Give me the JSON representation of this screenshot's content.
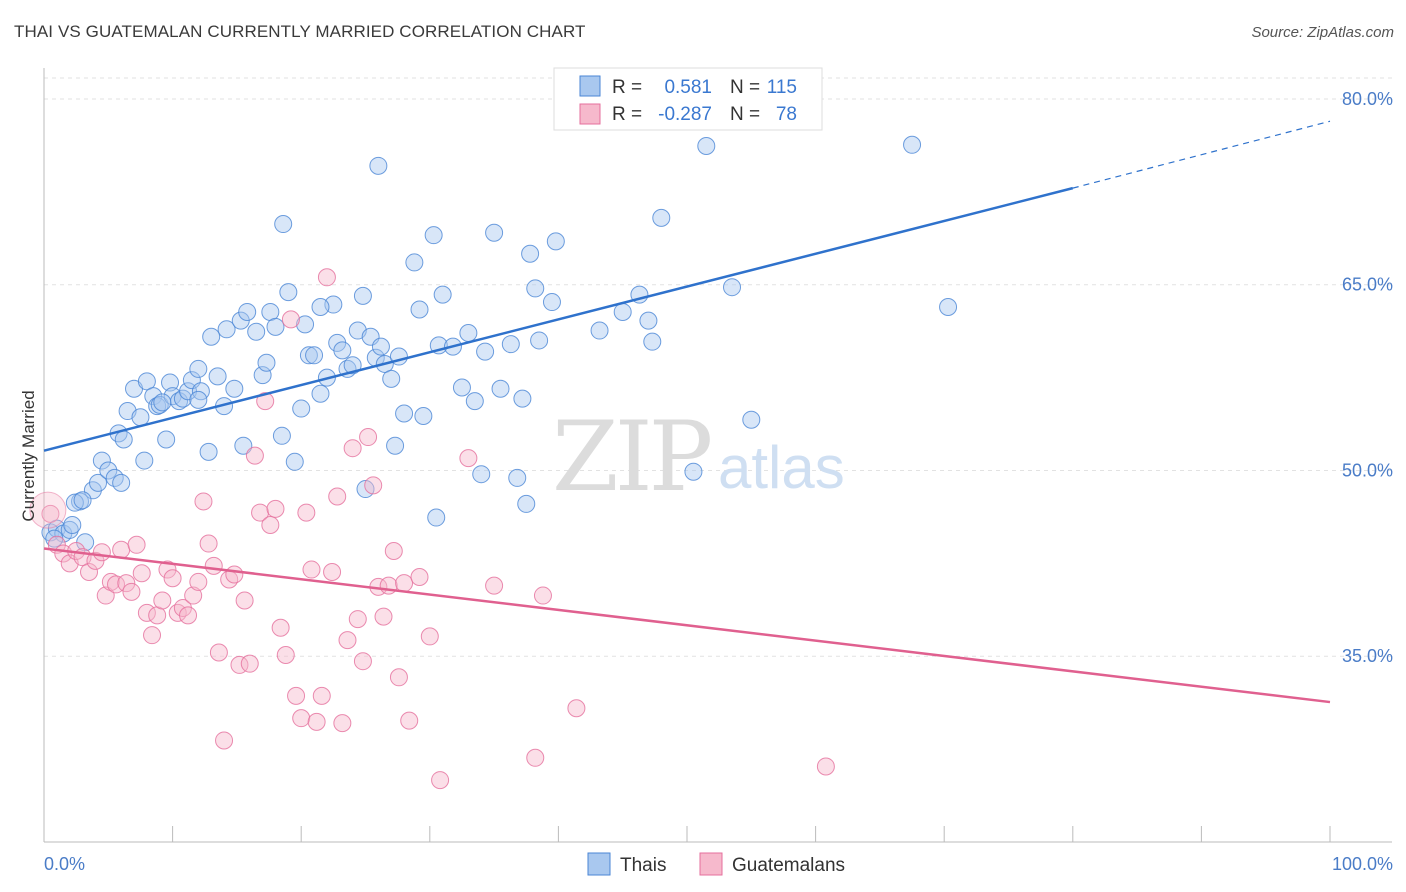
{
  "header": {
    "title": "THAI VS GUATEMALAN CURRENTLY MARRIED CORRELATION CHART",
    "source": "Source: ZipAtlas.com"
  },
  "watermark": {
    "zip": "ZIP",
    "atlas": "atlas"
  },
  "legend_top": {
    "rows": [
      {
        "r_label": "R =",
        "r_value": "0.581",
        "n_label": "N =",
        "n_value": "115",
        "color": "#a9c8ef"
      },
      {
        "r_label": "R =",
        "r_value": "-0.287",
        "n_label": "N =",
        "n_value": "78",
        "color": "#f6b9cc"
      }
    ]
  },
  "legend_bottom": {
    "items": [
      {
        "label": "Thais",
        "color": "#a9c8ef"
      },
      {
        "label": "Guatemalans",
        "color": "#f6b9cc"
      }
    ]
  },
  "chart_data": {
    "type": "scatter",
    "title": "THAI VS GUATEMALAN CURRENTLY MARRIED CORRELATION CHART",
    "xlabel": "",
    "ylabel": "Currently Married",
    "xlim": [
      0,
      100
    ],
    "ylim": [
      20,
      82.5
    ],
    "x_tick_labels": [
      "0.0%",
      "100.0%"
    ],
    "y_ticks": [
      35,
      50,
      65,
      80
    ],
    "y_tick_labels": [
      "35.0%",
      "50.0%",
      "65.0%",
      "80.0%"
    ],
    "grid": true,
    "legend_position": "top-center",
    "series": [
      {
        "name": "Thais",
        "color": "#4a86d6",
        "fill": "#a9c8ef",
        "r": 0.581,
        "n": 115,
        "trend": {
          "x0": 0,
          "y0": 51.6,
          "x1": 80,
          "y1": 72.8,
          "dashed_to_x": 100,
          "dashed_to_y": 78.2
        },
        "points": [
          [
            0.5,
            45.0
          ],
          [
            1.0,
            45.3
          ],
          [
            1.5,
            44.9
          ],
          [
            2.0,
            45.2
          ],
          [
            0.8,
            44.5
          ],
          [
            3.2,
            44.2
          ],
          [
            2.2,
            45.6
          ],
          [
            2.8,
            47.5
          ],
          [
            2.4,
            47.4
          ],
          [
            3.8,
            48.4
          ],
          [
            4.2,
            49.0
          ],
          [
            4.5,
            50.8
          ],
          [
            5.0,
            50.0
          ],
          [
            5.5,
            49.4
          ],
          [
            5.8,
            53.0
          ],
          [
            6.0,
            49.0
          ],
          [
            6.2,
            52.5
          ],
          [
            6.5,
            54.8
          ],
          [
            7.0,
            56.6
          ],
          [
            7.5,
            54.3
          ],
          [
            7.8,
            50.8
          ],
          [
            8.0,
            57.2
          ],
          [
            8.5,
            56.0
          ],
          [
            8.8,
            55.2
          ],
          [
            9.0,
            55.3
          ],
          [
            9.5,
            52.5
          ],
          [
            9.8,
            57.1
          ],
          [
            10.0,
            56.0
          ],
          [
            10.5,
            55.6
          ],
          [
            10.8,
            55.8
          ],
          [
            11.2,
            56.4
          ],
          [
            11.5,
            57.3
          ],
          [
            12.0,
            58.2
          ],
          [
            12.2,
            56.4
          ],
          [
            12.8,
            51.5
          ],
          [
            13.0,
            60.8
          ],
          [
            13.5,
            57.6
          ],
          [
            14.0,
            55.2
          ],
          [
            14.2,
            61.4
          ],
          [
            14.8,
            56.6
          ],
          [
            15.3,
            62.1
          ],
          [
            15.5,
            52.0
          ],
          [
            15.8,
            62.8
          ],
          [
            16.5,
            61.2
          ],
          [
            17.0,
            57.7
          ],
          [
            17.3,
            58.7
          ],
          [
            17.6,
            62.8
          ],
          [
            18.0,
            61.6
          ],
          [
            18.5,
            52.8
          ],
          [
            19.0,
            64.4
          ],
          [
            19.5,
            50.7
          ],
          [
            20.0,
            55.0
          ],
          [
            20.3,
            61.8
          ],
          [
            20.6,
            59.3
          ],
          [
            21.0,
            59.3
          ],
          [
            21.5,
            56.2
          ],
          [
            22.0,
            57.5
          ],
          [
            22.5,
            63.4
          ],
          [
            22.8,
            60.3
          ],
          [
            23.2,
            59.7
          ],
          [
            23.6,
            58.2
          ],
          [
            24.0,
            58.5
          ],
          [
            24.4,
            61.3
          ],
          [
            24.8,
            64.1
          ],
          [
            25.0,
            48.5
          ],
          [
            25.4,
            60.8
          ],
          [
            25.8,
            59.1
          ],
          [
            26.2,
            60.0
          ],
          [
            26.5,
            58.6
          ],
          [
            26.0,
            74.6
          ],
          [
            18.6,
            69.9
          ],
          [
            27.0,
            57.4
          ],
          [
            27.3,
            52.0
          ],
          [
            27.6,
            59.2
          ],
          [
            28.0,
            54.6
          ],
          [
            28.8,
            66.8
          ],
          [
            29.2,
            63.0
          ],
          [
            29.5,
            54.4
          ],
          [
            30.3,
            69.0
          ],
          [
            30.7,
            60.1
          ],
          [
            31.0,
            64.2
          ],
          [
            31.8,
            60.0
          ],
          [
            32.5,
            56.7
          ],
          [
            33.0,
            61.1
          ],
          [
            33.5,
            55.6
          ],
          [
            34.0,
            49.7
          ],
          [
            34.3,
            59.6
          ],
          [
            35.0,
            69.2
          ],
          [
            35.5,
            56.6
          ],
          [
            36.3,
            60.2
          ],
          [
            37.2,
            55.8
          ],
          [
            36.8,
            49.4
          ],
          [
            37.5,
            47.3
          ],
          [
            37.8,
            67.5
          ],
          [
            38.2,
            64.7
          ],
          [
            38.5,
            60.5
          ],
          [
            39.5,
            63.6
          ],
          [
            39.8,
            68.5
          ],
          [
            43.2,
            61.3
          ],
          [
            45.0,
            62.8
          ],
          [
            46.3,
            64.2
          ],
          [
            47.0,
            62.1
          ],
          [
            47.3,
            60.4
          ],
          [
            48.0,
            70.4
          ],
          [
            50.5,
            49.9
          ],
          [
            51.5,
            76.2
          ],
          [
            53.5,
            64.8
          ],
          [
            55.0,
            54.1
          ],
          [
            67.5,
            76.3
          ],
          [
            70.3,
            63.2
          ],
          [
            30.5,
            46.2
          ],
          [
            21.5,
            63.2
          ],
          [
            12.0,
            55.7
          ],
          [
            9.2,
            55.5
          ],
          [
            3.0,
            47.6
          ]
        ]
      },
      {
        "name": "Guatemalans",
        "color": "#e56f9c",
        "fill": "#f6b9cc",
        "r": -0.287,
        "n": 78,
        "trend": {
          "x0": 0,
          "y0": 43.7,
          "x1": 100,
          "y1": 31.3
        },
        "points": [
          [
            0.5,
            46.5
          ],
          [
            1.0,
            44.0
          ],
          [
            1.5,
            43.3
          ],
          [
            2.0,
            42.5
          ],
          [
            2.5,
            43.5
          ],
          [
            3.0,
            43.0
          ],
          [
            3.5,
            41.8
          ],
          [
            4.0,
            42.7
          ],
          [
            4.5,
            43.4
          ],
          [
            4.8,
            39.9
          ],
          [
            5.2,
            41.0
          ],
          [
            5.6,
            40.8
          ],
          [
            6.0,
            43.6
          ],
          [
            6.4,
            40.9
          ],
          [
            6.8,
            40.2
          ],
          [
            7.2,
            44.0
          ],
          [
            7.6,
            41.7
          ],
          [
            8.0,
            38.5
          ],
          [
            8.4,
            36.7
          ],
          [
            8.8,
            38.3
          ],
          [
            9.2,
            39.5
          ],
          [
            9.6,
            42.0
          ],
          [
            10.0,
            41.3
          ],
          [
            10.4,
            38.5
          ],
          [
            10.8,
            38.9
          ],
          [
            11.2,
            38.3
          ],
          [
            11.6,
            39.9
          ],
          [
            12.0,
            41.0
          ],
          [
            12.4,
            47.5
          ],
          [
            12.8,
            44.1
          ],
          [
            13.2,
            42.3
          ],
          [
            13.6,
            35.3
          ],
          [
            14.0,
            28.2
          ],
          [
            14.4,
            41.2
          ],
          [
            14.8,
            41.6
          ],
          [
            15.2,
            34.3
          ],
          [
            15.6,
            39.5
          ],
          [
            16.0,
            34.4
          ],
          [
            16.4,
            51.2
          ],
          [
            16.8,
            46.6
          ],
          [
            17.2,
            55.6
          ],
          [
            17.6,
            45.6
          ],
          [
            18.0,
            46.9
          ],
          [
            18.4,
            37.3
          ],
          [
            18.8,
            35.1
          ],
          [
            19.2,
            62.2
          ],
          [
            19.6,
            31.8
          ],
          [
            20.0,
            30.0
          ],
          [
            20.4,
            46.6
          ],
          [
            20.8,
            42.0
          ],
          [
            21.2,
            29.7
          ],
          [
            21.6,
            31.8
          ],
          [
            22.0,
            65.6
          ],
          [
            22.4,
            41.8
          ],
          [
            22.8,
            47.9
          ],
          [
            23.2,
            29.6
          ],
          [
            23.6,
            36.3
          ],
          [
            24.0,
            51.8
          ],
          [
            24.4,
            38.0
          ],
          [
            24.8,
            34.6
          ],
          [
            25.2,
            52.7
          ],
          [
            25.6,
            48.8
          ],
          [
            26.0,
            40.6
          ],
          [
            26.4,
            38.2
          ],
          [
            26.8,
            40.7
          ],
          [
            27.2,
            43.5
          ],
          [
            27.6,
            33.3
          ],
          [
            28.0,
            40.9
          ],
          [
            28.4,
            29.8
          ],
          [
            29.2,
            41.4
          ],
          [
            30.0,
            36.6
          ],
          [
            30.8,
            25.0
          ],
          [
            33.0,
            51.0
          ],
          [
            35.0,
            40.7
          ],
          [
            38.2,
            26.8
          ],
          [
            38.8,
            39.9
          ],
          [
            41.4,
            30.8
          ],
          [
            60.8,
            26.1
          ]
        ]
      }
    ]
  }
}
